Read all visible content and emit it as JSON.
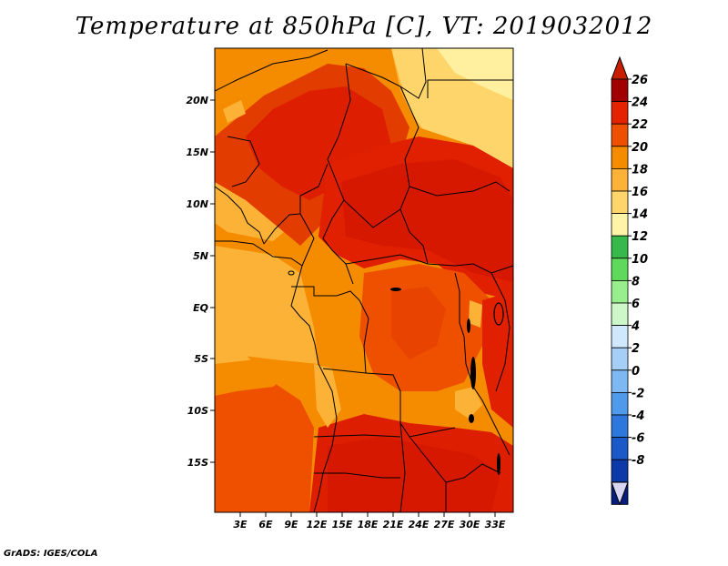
{
  "title": "Temperature at 850hPa [C], VT: 2019032012",
  "credit": "GrADS: IGES/COLA",
  "map": {
    "lat_labels": [
      "20N",
      "15N",
      "10N",
      "5N",
      "EQ",
      "5S",
      "10S",
      "15S"
    ],
    "lon_labels": [
      "3E",
      "6E",
      "9E",
      "12E",
      "15E",
      "18E",
      "21E",
      "24E",
      "27E",
      "30E",
      "33E"
    ]
  },
  "colorbar": {
    "labels": [
      "26",
      "24",
      "22",
      "20",
      "18",
      "16",
      "14",
      "12",
      "10",
      "8",
      "6",
      "4",
      "2",
      "0",
      "-2",
      "-4",
      "-6",
      "-8"
    ],
    "colors": [
      "#a00000",
      "#e42300",
      "#ee5000",
      "#f58c00",
      "#fbb236",
      "#fed56a",
      "#fff3a7",
      "#36b84a",
      "#5fd95b",
      "#98ee8c",
      "#cdf7c8",
      "#cfe8fd",
      "#a6cff8",
      "#7eb8f3",
      "#4f9aea",
      "#2e78dd",
      "#1b58c8",
      "#0d3aa8",
      "#051d7c"
    ],
    "top_color": "#c81e00",
    "bottom_color": "#d7d5f2"
  }
}
